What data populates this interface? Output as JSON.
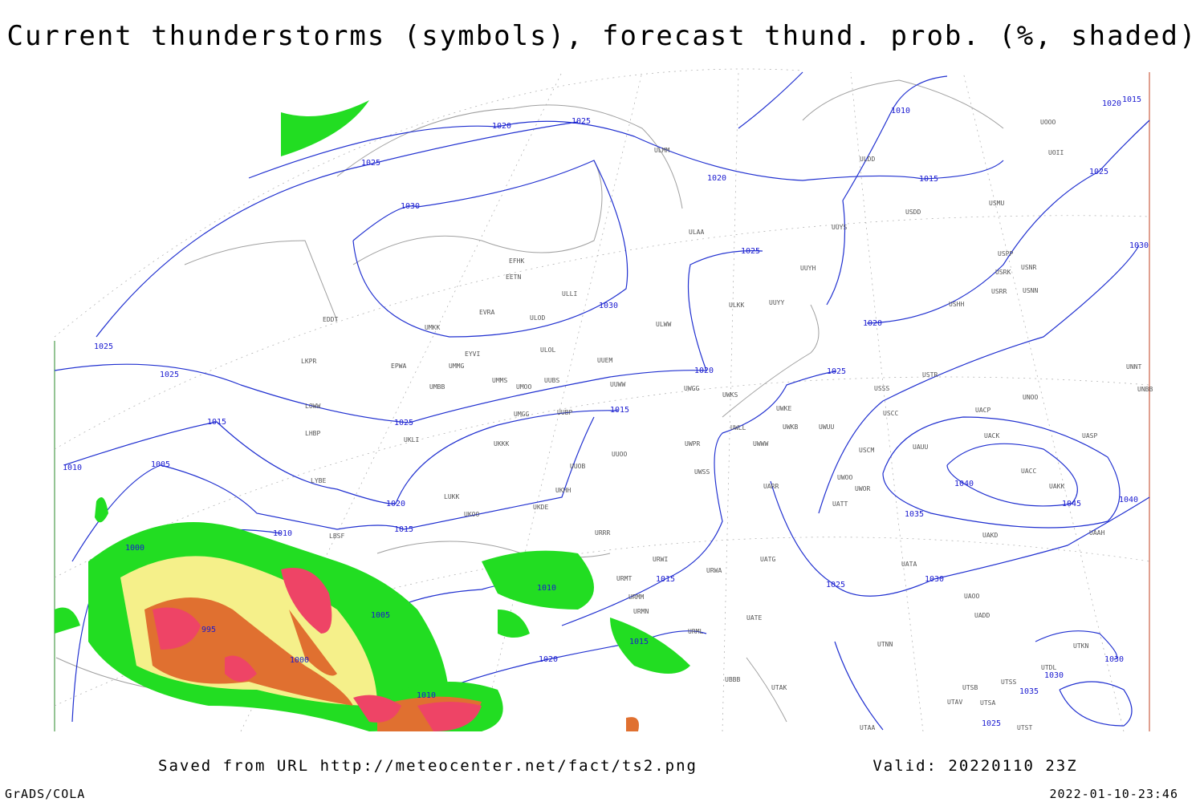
{
  "header": {
    "title": "Current thunderstorms (symbols), forecast thund. prob. (%, shaded)"
  },
  "footer": {
    "source": "Saved from URL http://meteocenter.net/fact/ts2.png",
    "valid": "Valid: 20220110 23Z",
    "credit": "GrADS/COLA",
    "timestamp": "2022-01-10-23:46"
  },
  "isobar_labels": [
    1020,
    1025,
    1025,
    1030,
    1010,
    1020,
    1015,
    1020,
    1015,
    1025,
    1025,
    1030,
    1030,
    1020,
    1025,
    1025,
    1020,
    1025,
    1015,
    1025,
    1015,
    1010,
    1005,
    1020,
    1015,
    1040,
    1045,
    1040,
    1035,
    1010,
    1000,
    1030,
    1025,
    1015,
    1010,
    995,
    1005,
    1000,
    1020,
    1015,
    1010,
    1030,
    1030,
    1035,
    1025
  ],
  "stations": [
    "ULMM",
    "ULDD",
    "USDD",
    "USMU",
    "UOOO",
    "UOII",
    "ULAA",
    "UUYS",
    "EFHK",
    "EETN",
    "ULLI",
    "UUYH",
    "USPP",
    "USRK",
    "USNR",
    "USRR",
    "USNN",
    "ULKK",
    "UUYY",
    "USHH",
    "EVRA",
    "ULOD",
    "EDDT",
    "UMKK",
    "ULWW",
    "EYVI",
    "ULOL",
    "UUEM",
    "EPWA",
    "UMMG",
    "LKPR",
    "UMMS",
    "UUBS",
    "UUWW",
    "USTR",
    "UNNT",
    "UNBB",
    "UMBB",
    "UMOO",
    "UWGG",
    "UWKS",
    "USSS",
    "UNOO",
    "LOWW",
    "UMGG",
    "UUBP",
    "UWKE",
    "UACP",
    "USCC",
    "UKLI",
    "LHBP",
    "UKKK",
    "UWLL",
    "UWKB",
    "UWUU",
    "UACK",
    "UASP",
    "UWPR",
    "UWWW",
    "USCM",
    "UAUU",
    "UUOO",
    "UUOB",
    "LYBE",
    "UWSS",
    "UARR",
    "UWOO",
    "UWOR",
    "UACC",
    "UAKK",
    "LUKK",
    "UKHH",
    "UKDE",
    "UKOO",
    "UATT",
    "UAKD",
    "UAAH",
    "URRR",
    "LBSF",
    "UATG",
    "URWI",
    "URWA",
    "UATA",
    "URMT",
    "URMM",
    "UAOO",
    "UATE",
    "URMN",
    "UADD",
    "URML",
    "UTNN",
    "UBBB",
    "UTAK",
    "UTSS",
    "UTSB",
    "UTAV",
    "UTSA",
    "UTAA",
    "UTST",
    "UTKN",
    "UTDL"
  ]
}
